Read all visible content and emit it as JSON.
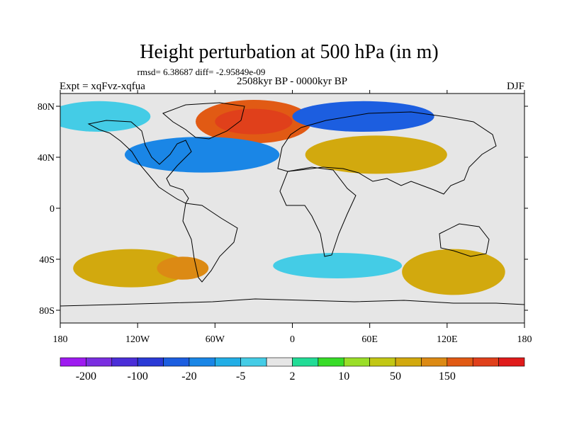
{
  "chart_data": {
    "type": "filled-contour map",
    "title": "Height perturbation at 500 hPa (in m)",
    "stats_text": "rmsd= 6.38687 diff= -2.95849e-09",
    "period_label": "2508kyr BP - 0000kyr BP",
    "experiment_label": "Expt = xqFvz-xqfua",
    "season_label": "DJF",
    "x_axis": {
      "range": [
        -180,
        180
      ],
      "ticks": [
        -180,
        -120,
        -60,
        0,
        60,
        120,
        180
      ],
      "tick_labels": [
        "180",
        "120W",
        "60W",
        "0",
        "60E",
        "120E",
        "180"
      ]
    },
    "y_axis": {
      "range": [
        -90,
        90
      ],
      "ticks": [
        80,
        40,
        0,
        -40,
        -80
      ],
      "tick_labels": [
        "80N",
        "40N",
        "0",
        "40S",
        "80S"
      ]
    },
    "colorbar": {
      "colors": [
        "#9e1bf0",
        "#7a2ee0",
        "#4b2ed8",
        "#2a3ad6",
        "#1c5ee0",
        "#1a86e6",
        "#22aee6",
        "#44cce6",
        "#e6e6e6",
        "#22dc96",
        "#38dc28",
        "#9ade28",
        "#c2c714",
        "#d2a90e",
        "#dc8a14",
        "#e15a14",
        "#e0401b",
        "#e01b1b"
      ],
      "label_values": [
        "-200",
        "-100",
        "-20",
        "-5",
        "2",
        "10",
        "50",
        "150"
      ]
    },
    "blobs": [
      {
        "lon": -30,
        "lat": 68,
        "rx": 45,
        "ry": 17,
        "level": 15
      },
      {
        "lon": -30,
        "lat": 68,
        "rx": 30,
        "ry": 10,
        "level": 16
      },
      {
        "lon": 55,
        "lat": 72,
        "rx": 55,
        "ry": 12,
        "level": 4
      },
      {
        "lon": 65,
        "lat": 42,
        "rx": 55,
        "ry": 15,
        "level": 13
      },
      {
        "lon": -70,
        "lat": 42,
        "rx": 60,
        "ry": 14,
        "level": 5
      },
      {
        "lon": -125,
        "lat": -47,
        "rx": 45,
        "ry": 15,
        "level": 13
      },
      {
        "lon": -85,
        "lat": -47,
        "rx": 20,
        "ry": 9,
        "level": 14
      },
      {
        "lon": 125,
        "lat": -50,
        "rx": 40,
        "ry": 18,
        "level": 13
      },
      {
        "lon": -150,
        "lat": 72,
        "rx": 40,
        "ry": 12,
        "level": 7
      },
      {
        "lon": 35,
        "lat": -45,
        "rx": 50,
        "ry": 10,
        "level": 7
      }
    ]
  }
}
